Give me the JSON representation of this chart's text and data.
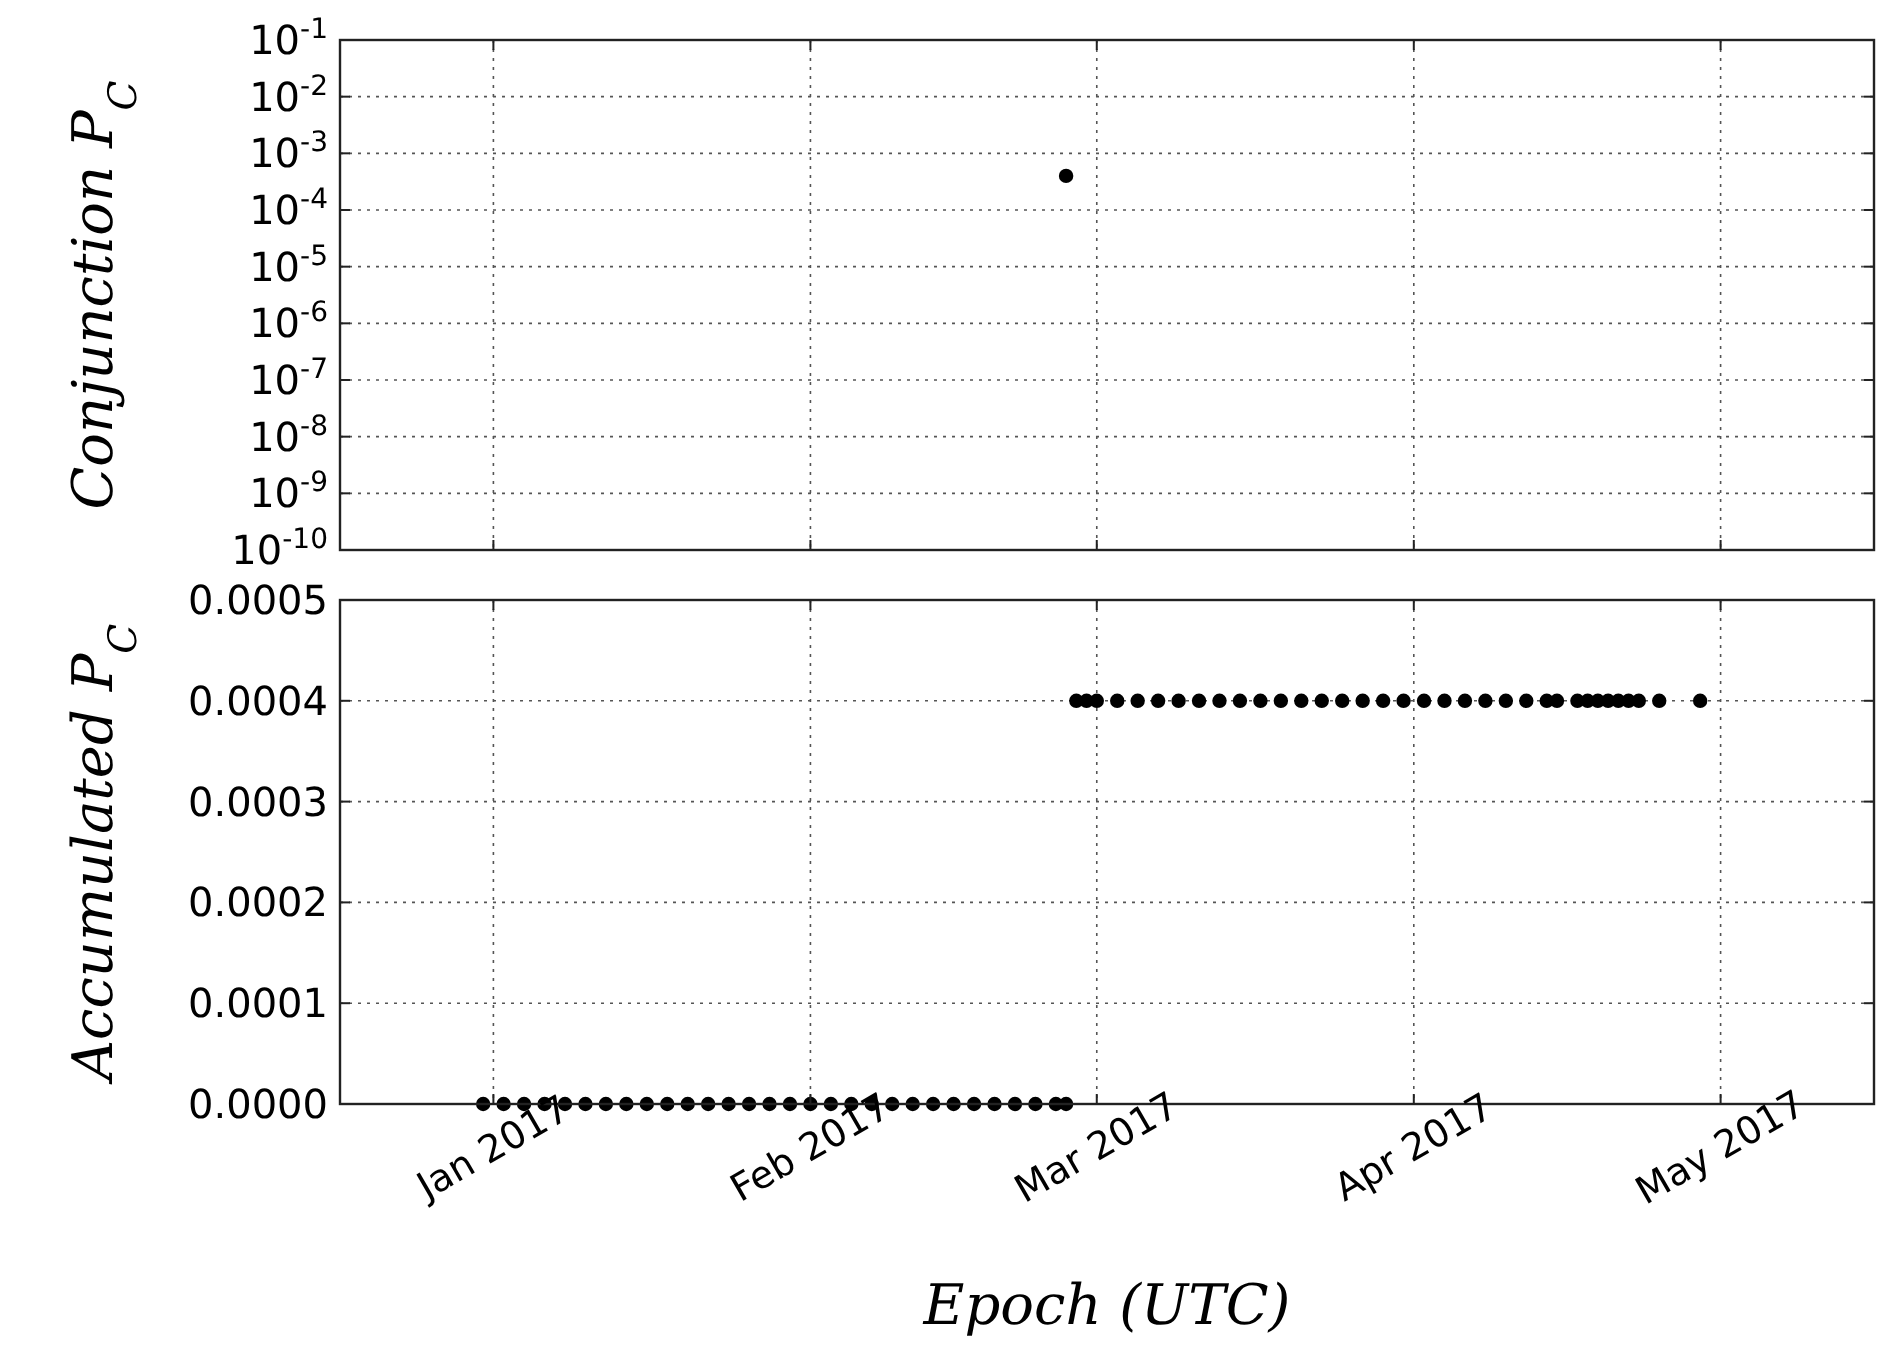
{
  "chart_data": [
    {
      "type": "scatter",
      "ylabel": "Conjunction P$_{C}$",
      "log": "y",
      "grid": true,
      "marker": "circle",
      "tick_labels": "y",
      "xlim": [
        "2016-12-17",
        "2017-05-16"
      ],
      "xticks": [
        {
          "value": "2017-01-01",
          "label": null
        },
        {
          "value": "2017-02-01",
          "label": null
        },
        {
          "value": "2017-03-01",
          "label": null
        },
        {
          "value": "2017-04-01",
          "label": null
        },
        {
          "value": "2017-05-01",
          "label": null
        }
      ],
      "ylim": [
        1e-10,
        0.1
      ],
      "yticks": [
        {
          "value": 0.1,
          "label": "10$^{-1}$"
        },
        {
          "value": 0.01,
          "label": "10$^{-2}$"
        },
        {
          "value": 0.001,
          "label": "10$^{-3}$"
        },
        {
          "value": 0.0001,
          "label": "10$^{-4}$"
        },
        {
          "value": 1e-05,
          "label": "10$^{-5}$"
        },
        {
          "value": 1e-06,
          "label": "10$^{-6}$"
        },
        {
          "value": 1e-07,
          "label": "10$^{-7}$"
        },
        {
          "value": 1e-08,
          "label": "10$^{-8}$"
        },
        {
          "value": 1e-09,
          "label": "10$^{-9}$"
        },
        {
          "value": 1e-10,
          "label": "10$^{-10}$"
        }
      ],
      "series": [
        {
          "color": "#000000",
          "x": [
            "2017-02-26"
          ],
          "values": [
            0.0004
          ]
        }
      ]
    },
    {
      "type": "scatter",
      "ylabel": "Accumulated P$_{C}$",
      "xlabel": "Epoch (UTC)",
      "grid": true,
      "marker": "circle",
      "xlim": [
        "2016-12-17",
        "2017-05-16"
      ],
      "xticks": [
        {
          "value": "2017-01-01",
          "label": "Jan 2017"
        },
        {
          "value": "2017-02-01",
          "label": "Feb 2017"
        },
        {
          "value": "2017-03-01",
          "label": "Mar 2017"
        },
        {
          "value": "2017-04-01",
          "label": "Apr 2017"
        },
        {
          "value": "2017-05-01",
          "label": "May 2017"
        }
      ],
      "ylim": [
        0,
        0.0005
      ],
      "yticks": [
        {
          "value": 0,
          "label": "0.0000"
        },
        {
          "value": 0.0001,
          "label": "0.0001"
        },
        {
          "value": 0.0002,
          "label": "0.0002"
        },
        {
          "value": 0.0003,
          "label": "0.0003"
        },
        {
          "value": 0.0004,
          "label": "0.0004"
        },
        {
          "value": 0.0005,
          "label": "0.0005"
        }
      ],
      "series": [
        {
          "color": "#000000",
          "x": [
            "2016-12-31",
            "2017-01-02",
            "2017-01-04",
            "2017-01-06",
            "2017-01-08",
            "2017-01-10",
            "2017-01-12",
            "2017-01-14",
            "2017-01-16",
            "2017-01-18",
            "2017-01-20",
            "2017-01-22",
            "2017-01-24",
            "2017-01-26",
            "2017-01-28",
            "2017-01-30",
            "2017-02-01",
            "2017-02-03",
            "2017-02-05",
            "2017-02-07",
            "2017-02-09",
            "2017-02-11",
            "2017-02-13",
            "2017-02-15",
            "2017-02-17",
            "2017-02-19",
            "2017-02-21",
            "2017-02-23",
            "2017-02-25",
            "2017-02-26",
            "2017-02-27",
            "2017-02-28",
            "2017-03-01",
            "2017-03-03",
            "2017-03-05",
            "2017-03-07",
            "2017-03-09",
            "2017-03-11",
            "2017-03-13",
            "2017-03-15",
            "2017-03-17",
            "2017-03-19",
            "2017-03-21",
            "2017-03-23",
            "2017-03-25",
            "2017-03-27",
            "2017-03-29",
            "2017-03-31",
            "2017-04-02",
            "2017-04-04",
            "2017-04-06",
            "2017-04-08",
            "2017-04-10",
            "2017-04-12",
            "2017-04-14",
            "2017-04-15",
            "2017-04-17",
            "2017-04-18",
            "2017-04-19",
            "2017-04-20",
            "2017-04-21",
            "2017-04-22",
            "2017-04-23",
            "2017-04-25",
            "2017-04-29"
          ],
          "values": [
            0,
            0,
            0,
            0,
            0,
            0,
            0,
            0,
            0,
            0,
            0,
            0,
            0,
            0,
            0,
            0,
            0,
            0,
            0,
            0,
            0,
            0,
            0,
            0,
            0,
            0,
            0,
            0,
            0,
            0,
            0.0004,
            0.0004,
            0.0004,
            0.0004,
            0.0004,
            0.0004,
            0.0004,
            0.0004,
            0.0004,
            0.0004,
            0.0004,
            0.0004,
            0.0004,
            0.0004,
            0.0004,
            0.0004,
            0.0004,
            0.0004,
            0.0004,
            0.0004,
            0.0004,
            0.0004,
            0.0004,
            0.0004,
            0.0004,
            0.0004,
            0.0004,
            0.0004,
            0.0004,
            0.0004,
            0.0004,
            0.0004,
            0.0004,
            0.0004,
            0.0004
          ]
        }
      ]
    }
  ]
}
